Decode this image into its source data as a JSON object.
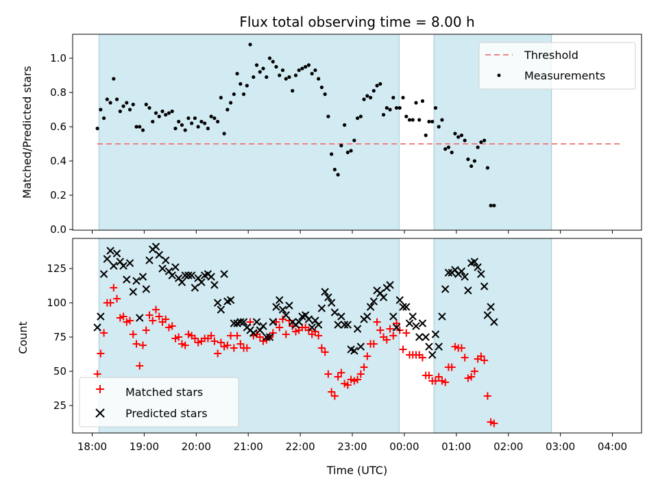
{
  "chart_data": [
    {
      "type": "scatter",
      "title": "Flux total observing time = 8.00 h",
      "xlabel": "",
      "ylabel": "Matched/Predicted stars",
      "ylim": [
        0,
        1.12
      ],
      "yticks": [
        "0.0",
        "0.2",
        "0.4",
        "0.6",
        "0.8",
        "1.0"
      ],
      "legend_position": "top-right",
      "threshold": {
        "name": "Threshold",
        "value": 0.5,
        "color": "#f08080"
      },
      "shaded_intervals_hours": [
        [
          18.13,
          23.9
        ],
        [
          24.57,
          26.83
        ]
      ],
      "shade_color": "#add8e6",
      "series": [
        {
          "name": "Measurements",
          "color": "#000000",
          "x_start_hours": 18.1,
          "x_step_hours": 0.0625,
          "values": [
            0.59,
            0.7,
            0.65,
            0.76,
            0.74,
            0.88,
            0.76,
            0.69,
            0.72,
            0.74,
            0.7,
            0.73,
            0.6,
            0.6,
            0.58,
            0.73,
            0.71,
            0.63,
            0.68,
            0.66,
            0.69,
            0.67,
            0.68,
            0.69,
            0.59,
            0.63,
            0.61,
            0.58,
            0.65,
            0.62,
            0.65,
            0.6,
            0.63,
            0.62,
            0.59,
            0.66,
            0.65,
            0.63,
            0.77,
            0.56,
            0.7,
            0.74,
            0.79,
            0.91,
            0.85,
            0.79,
            0.84,
            1.08,
            0.89,
            0.96,
            0.92,
            0.94,
            0.89,
            1.0,
            0.98,
            0.95,
            0.9,
            0.93,
            0.88,
            0.89,
            0.81,
            0.9,
            0.93,
            0.94,
            0.95,
            0.96,
            0.91,
            0.93,
            0.88,
            0.83,
            0.79,
            0.66,
            0.44,
            0.35,
            0.32,
            0.49,
            0.61,
            0.45,
            0.46,
            0.52,
            0.65,
            0.66,
            0.76,
            0.78,
            0.77,
            0.81,
            0.84,
            0.85,
            0.67,
            0.71,
            0.7,
            0.77,
            0.71,
            0.71,
            0.77,
            0.66,
            0.64,
            0.64,
            0.74,
            0.64,
            0.75,
            0.55,
            0.63,
            0.63,
            0.71,
            0.6,
            0.64,
            0.47,
            0.48,
            0.45,
            0.56,
            0.54,
            0.55,
            0.52,
            0.41,
            0.37,
            0.4,
            0.48,
            0.51,
            0.52,
            0.36,
            0.14,
            0.14
          ]
        }
      ]
    },
    {
      "type": "scatter",
      "title": "",
      "xlabel": "Time (UTC)",
      "ylabel": "Count",
      "ylim": [
        5,
        145
      ],
      "yticks": [
        "25",
        "50",
        "75",
        "100",
        "125"
      ],
      "xticks_hours": [
        18,
        19,
        20,
        21,
        22,
        23,
        24,
        25,
        26,
        27,
        28
      ],
      "xtick_labels": [
        "18:00",
        "19:00",
        "20:00",
        "21:00",
        "22:00",
        "23:00",
        "00:00",
        "01:00",
        "02:00",
        "03:00",
        "04:00"
      ],
      "legend_position": "bottom-left",
      "shaded_intervals_hours": [
        [
          18.13,
          23.9
        ],
        [
          24.57,
          26.83
        ]
      ],
      "shade_color": "#add8e6",
      "series": [
        {
          "name": "Matched stars",
          "marker": "plus",
          "color": "#ff0000",
          "x_start_hours": 18.1,
          "x_step_hours": 0.0625,
          "values": [
            48,
            63,
            78,
            100,
            100,
            111,
            103,
            89,
            90,
            86,
            87,
            77,
            70,
            54,
            69,
            80,
            91,
            87,
            95,
            90,
            86,
            88,
            82,
            83,
            74,
            75,
            70,
            69,
            77,
            76,
            74,
            71,
            72,
            74,
            74,
            76,
            72,
            63,
            71,
            68,
            69,
            76,
            67,
            76,
            70,
            67,
            67,
            86,
            76,
            77,
            75,
            72,
            73,
            75,
            78,
            86,
            82,
            88,
            77,
            87,
            83,
            79,
            80,
            82,
            82,
            80,
            77,
            79,
            76,
            67,
            64,
            48,
            35,
            32,
            46,
            49,
            41,
            40,
            44,
            43,
            44,
            48,
            53,
            61,
            70,
            70,
            86,
            80,
            75,
            73,
            81,
            76,
            85,
            80,
            66,
            78,
            62,
            62,
            62,
            62,
            60,
            47,
            47,
            43,
            43,
            46,
            43,
            42,
            53,
            53,
            68,
            67,
            67,
            60,
            45,
            46,
            50,
            59,
            61,
            58,
            32,
            13,
            12
          ]
        },
        {
          "name": "Predicted stars",
          "marker": "x",
          "color": "#000000",
          "x_start_hours": 18.1,
          "x_step_hours": 0.0625,
          "values": [
            82,
            90,
            121,
            132,
            138,
            127,
            136,
            130,
            127,
            117,
            129,
            108,
            116,
            89,
            119,
            110,
            131,
            139,
            141,
            135,
            125,
            131,
            123,
            120,
            126,
            118,
            115,
            120,
            120,
            120,
            111,
            118,
            115,
            120,
            121,
            119,
            113,
            100,
            95,
            121,
            101,
            102,
            85,
            85,
            86,
            86,
            82,
            80,
            78,
            86,
            80,
            83,
            75,
            75,
            86,
            97,
            102,
            95,
            91,
            98,
            86,
            84,
            86,
            90,
            91,
            88,
            82,
            87,
            84,
            96,
            108,
            104,
            100,
            93,
            84,
            90,
            84,
            84,
            66,
            65,
            81,
            68,
            88,
            90,
            97,
            101,
            109,
            107,
            104,
            111,
            113,
            90,
            82,
            102,
            97,
            97,
            85,
            90,
            83,
            75,
            85,
            75,
            68,
            62,
            77,
            68,
            90,
            110,
            122,
            122,
            124,
            121,
            123,
            119,
            109,
            129,
            130,
            126,
            121,
            112,
            91,
            97,
            86
          ]
        }
      ]
    }
  ]
}
